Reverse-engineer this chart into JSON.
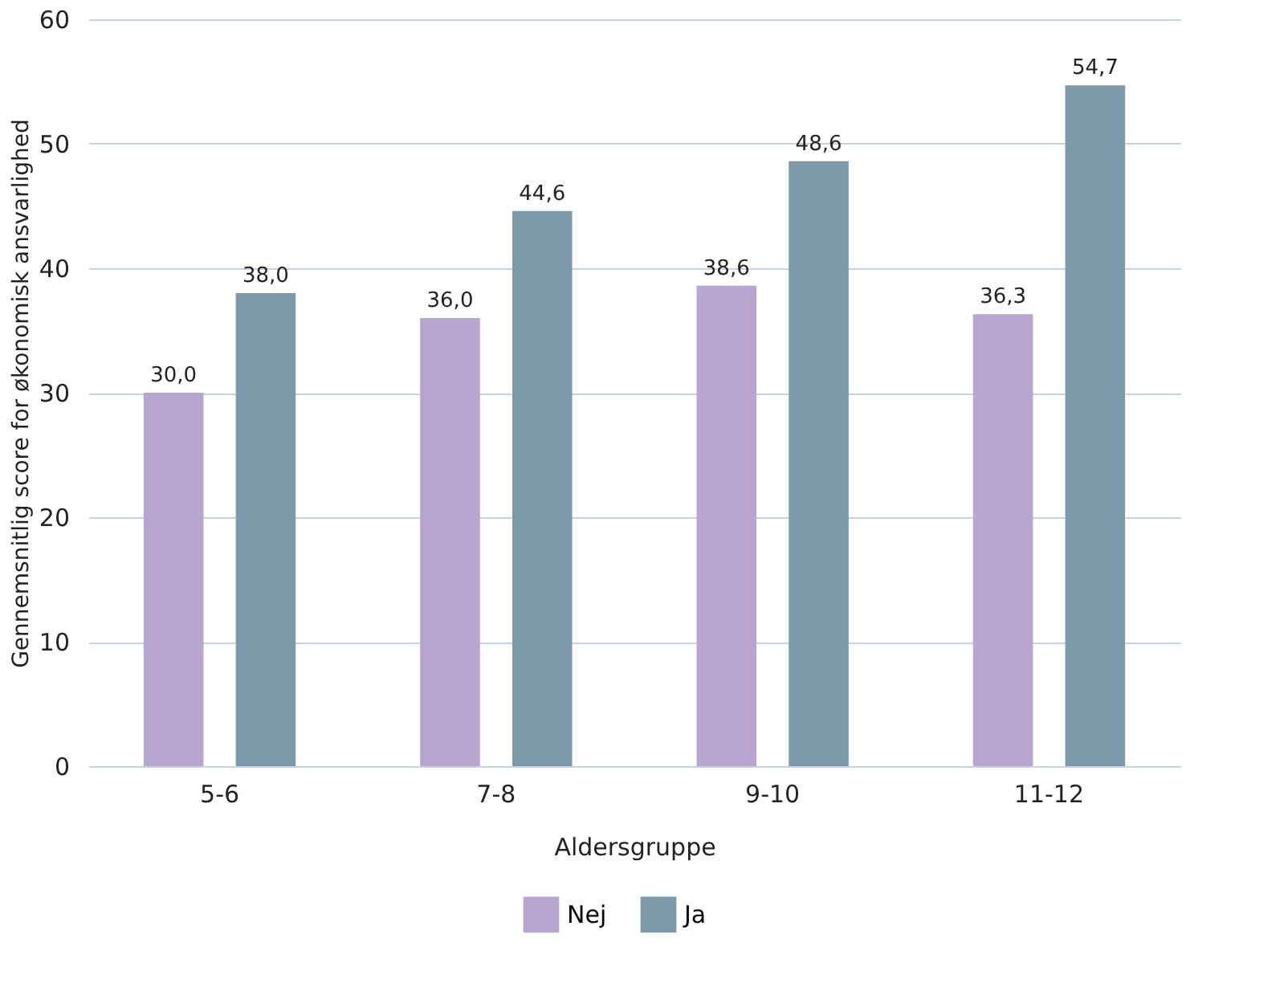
{
  "chart_data": {
    "type": "bar",
    "xlabel": "Aldersgruppe",
    "ylabel": "Gennemsnitlig score for økonomisk ansvarlighed",
    "categories": [
      "5-6",
      "7-8",
      "9-10",
      "11-12"
    ],
    "series": [
      {
        "name": "Nej",
        "color": "#b9a6d0",
        "values": [
          30.0,
          36.0,
          38.6,
          36.3
        ],
        "value_labels": [
          "30,0",
          "36,0",
          "38,6",
          "36,3"
        ]
      },
      {
        "name": "Ja",
        "color": "#7e9aa8",
        "values": [
          38.0,
          44.6,
          48.6,
          54.7
        ],
        "value_labels": [
          "38,0",
          "44,6",
          "48,6",
          "54,7"
        ]
      }
    ],
    "ylim": [
      0,
      60
    ],
    "yticks": [
      0,
      10,
      20,
      30,
      40,
      50,
      60
    ],
    "grid": "y",
    "legend": "bottom"
  }
}
